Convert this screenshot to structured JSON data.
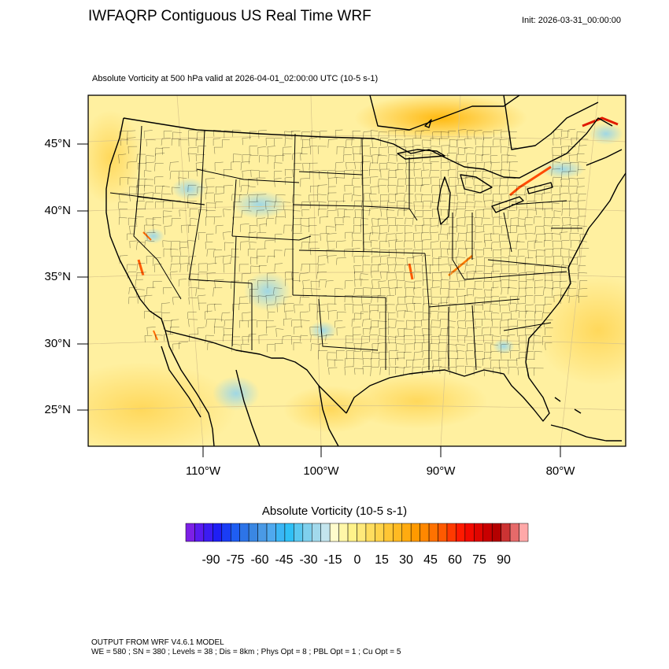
{
  "title": "IWFAQRP Contiguous US Real Time WRF",
  "init": "Init: 2026-03-31_00:00:00",
  "subtitle": "Absolute Vorticity at 500 hPa valid at 2026-04-01_02:00:00 UTC   (10-5 s-1)",
  "latitude_labels": [
    "45°N",
    "40°N",
    "35°N",
    "30°N",
    "25°N"
  ],
  "longitude_labels": [
    "110°W",
    "100°W",
    "90°W",
    "80°W"
  ],
  "colorbar": {
    "title": "Absolute Vorticity  (10-5 s-1)",
    "tick_labels": [
      "-90",
      "-75",
      "-60",
      "-45",
      "-30",
      "-15",
      "0",
      "15",
      "30",
      "45",
      "60",
      "75",
      "90"
    ],
    "colors": [
      "#7c20e6",
      "#5a1bf0",
      "#3c1cf2",
      "#1f1ff5",
      "#1a3df5",
      "#1f5ef2",
      "#2d74e8",
      "#3a87e3",
      "#4a9ae6",
      "#4fa9ef",
      "#3bb6f5",
      "#2fc0f6",
      "#5ac8f0",
      "#7fd0ed",
      "#a2d9ec",
      "#c3e5ee",
      "#fffccc",
      "#fff7a8",
      "#fff28a",
      "#ffe97a",
      "#ffdd5e",
      "#ffd34a",
      "#ffc634",
      "#ffba22",
      "#ffab10",
      "#ff9a00",
      "#ff8800",
      "#ff7200",
      "#ff5a00",
      "#ff3a00",
      "#ff1a00",
      "#f20a00",
      "#df0500",
      "#c80000",
      "#b40000",
      "#cc3333",
      "#e66a6a",
      "#ffa8a8"
    ]
  },
  "footer": {
    "line1": "OUTPUT FROM WRF V4.6.1 MODEL",
    "line2": "WE = 580 ; SN = 380 ; Levels = 38 ; Dis = 8km ; Phys Opt = 8 ; PBL Opt = 1 ; Cu Opt = 5"
  },
  "colors": {
    "field_base": "#fff0a0",
    "ocean_base": "#ffe88c",
    "border": "#000000"
  }
}
